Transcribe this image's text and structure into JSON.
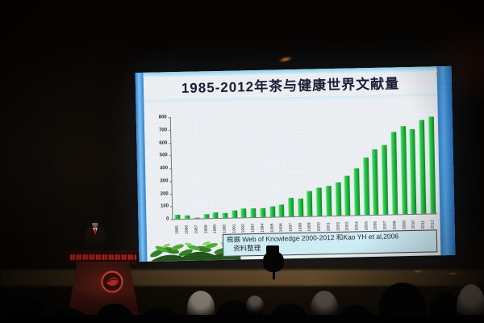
{
  "slide": {
    "title": "1985-2012年茶与健康世界文献量",
    "source_line1": "根据 Web of Knowledge 2000-2012 和Kao YH et al,2006",
    "source_line2": "资料整理"
  },
  "chart_data": {
    "type": "bar",
    "title": "1985-2012年茶与健康世界文献量",
    "categories": [
      "1985",
      "1986",
      "1987",
      "1988",
      "1989",
      "1990",
      "1991",
      "1992",
      "1993",
      "1994",
      "1995",
      "1996",
      "1997",
      "1998",
      "1999",
      "2000",
      "2001",
      "2002",
      "2003",
      "2004",
      "2005",
      "2006",
      "2007",
      "2008",
      "2009",
      "2010",
      "2011",
      "2012"
    ],
    "values": [
      30,
      27,
      8,
      33,
      42,
      38,
      55,
      72,
      68,
      70,
      82,
      95,
      148,
      140,
      198,
      222,
      235,
      262,
      310,
      370,
      448,
      515,
      545,
      645,
      690,
      668,
      735,
      760
    ],
    "xlabel": "",
    "ylabel": "",
    "ylim": [
      0,
      800
    ],
    "yticks": [
      0,
      100,
      200,
      300,
      400,
      500,
      600,
      700,
      800
    ],
    "grid": false,
    "legend": "none",
    "bar_color": "#12b231"
  },
  "colors": {
    "slide_border_blue": "#2c7ecf",
    "bar_green": "#12b231",
    "title_text": "#14142c",
    "source_box_bg": "#cfeef7",
    "podium_led_red": "#d03428"
  }
}
